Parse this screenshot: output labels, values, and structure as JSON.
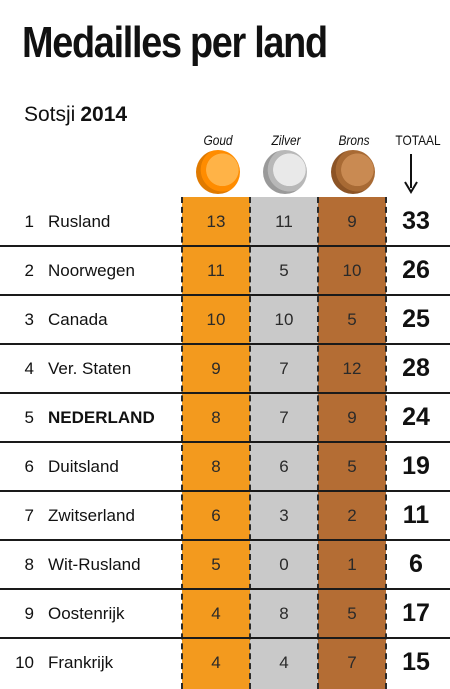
{
  "title": "Medailles per land",
  "subtitle": {
    "label": "Sotsji",
    "year": "2014"
  },
  "chart_data": {
    "type": "table",
    "columns": [
      "Goud",
      "Zilver",
      "Brons",
      "TOTAAL"
    ],
    "rows": [
      {
        "rank": "1",
        "country": "Rusland",
        "gold": "13",
        "silver": "11",
        "bronze": "9",
        "total": "33"
      },
      {
        "rank": "2",
        "country": "Noorwegen",
        "gold": "11",
        "silver": "5",
        "bronze": "10",
        "total": "26"
      },
      {
        "rank": "3",
        "country": "Canada",
        "gold": "10",
        "silver": "10",
        "bronze": "5",
        "total": "25"
      },
      {
        "rank": "4",
        "country": "Ver. Staten",
        "gold": "9",
        "silver": "7",
        "bronze": "12",
        "total": "28"
      },
      {
        "rank": "5",
        "country": "NEDERLAND",
        "gold": "8",
        "silver": "7",
        "bronze": "9",
        "total": "24",
        "highlight": true
      },
      {
        "rank": "6",
        "country": "Duitsland",
        "gold": "8",
        "silver": "6",
        "bronze": "5",
        "total": "19"
      },
      {
        "rank": "7",
        "country": "Zwitserland",
        "gold": "6",
        "silver": "3",
        "bronze": "2",
        "total": "11"
      },
      {
        "rank": "8",
        "country": "Wit-Rusland",
        "gold": "5",
        "silver": "0",
        "bronze": "1",
        "total": "6"
      },
      {
        "rank": "9",
        "country": "Oostenrijk",
        "gold": "4",
        "silver": "8",
        "bronze": "5",
        "total": "17"
      },
      {
        "rank": "10",
        "country": "Frankrijk",
        "gold": "4",
        "silver": "4",
        "bronze": "7",
        "total": "15"
      }
    ]
  },
  "colors": {
    "gold": "#f39a1e",
    "silver": "#c9c9c9",
    "bronze": "#b46d34"
  },
  "icons": {
    "gold": "gold-medal-icon",
    "silver": "silver-medal-icon",
    "bronze": "bronze-medal-icon",
    "total": "arrow-down-icon"
  }
}
